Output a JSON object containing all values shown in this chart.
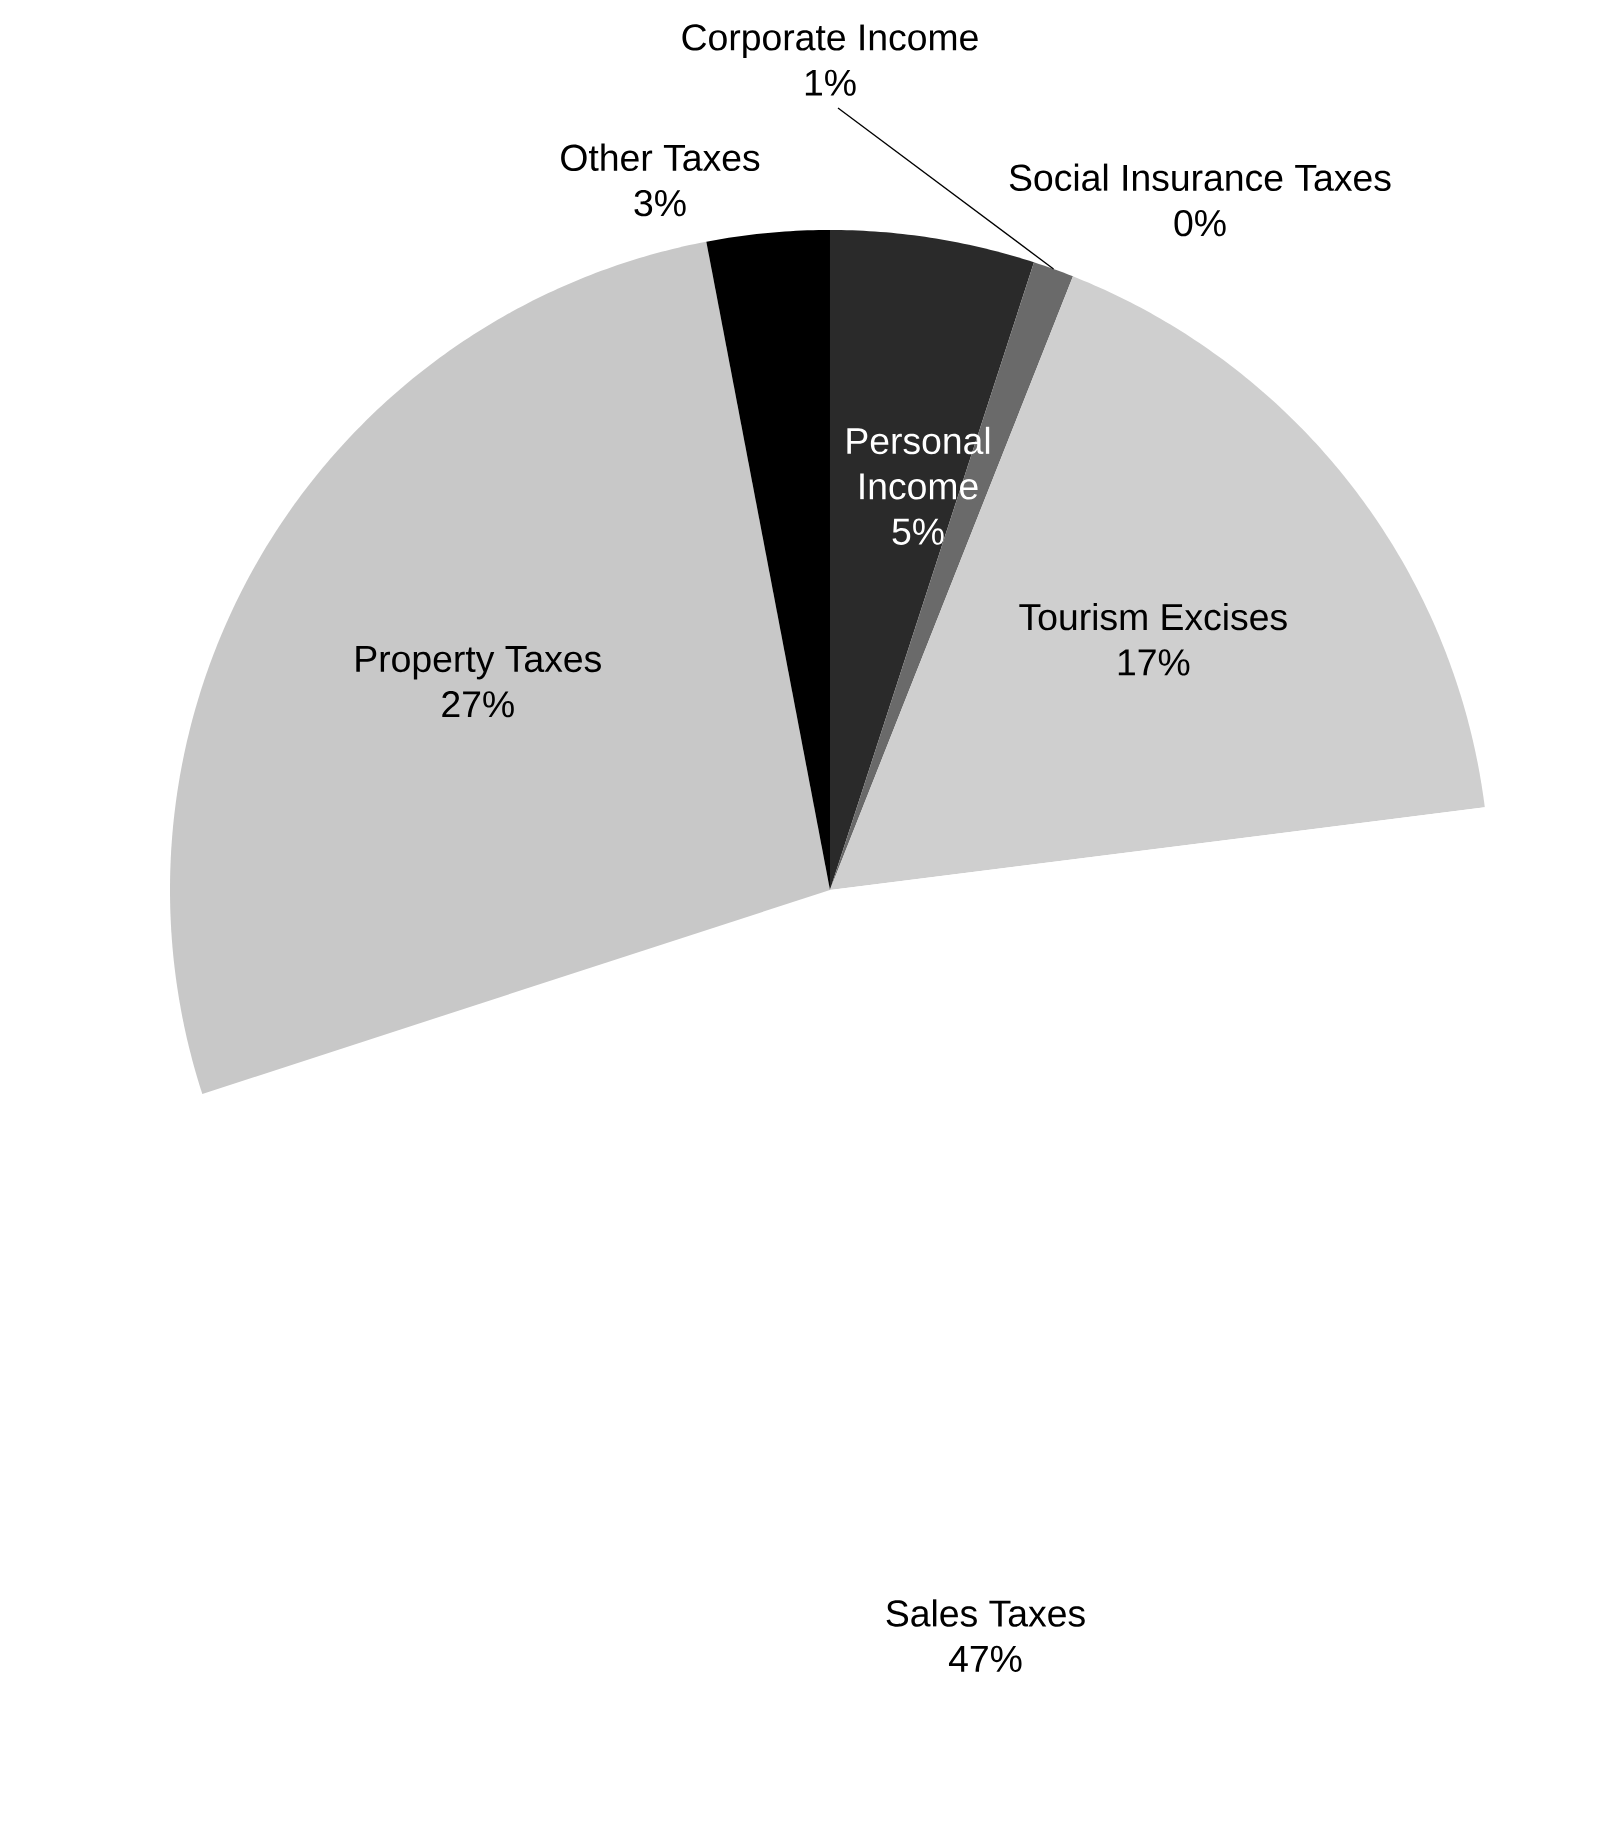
{
  "chart_data": {
    "type": "pie",
    "categories": [
      "Personal Income",
      "Corporate Income",
      "Social Insurance Taxes",
      "Tourism Excises",
      "Sales Taxes",
      "Property Taxes",
      "Other Taxes"
    ],
    "values": [
      5,
      1,
      0,
      17,
      47,
      27,
      3
    ],
    "value_labels": [
      "5%",
      "1%",
      "0%",
      "17%",
      "47%",
      "27%",
      "3%"
    ],
    "colors": [
      "#2a2a2a",
      "#6a6a6a",
      "#9a9a9a",
      "#cfcfcf",
      "#ffffff",
      "#c8c8c8",
      "#000000"
    ]
  }
}
